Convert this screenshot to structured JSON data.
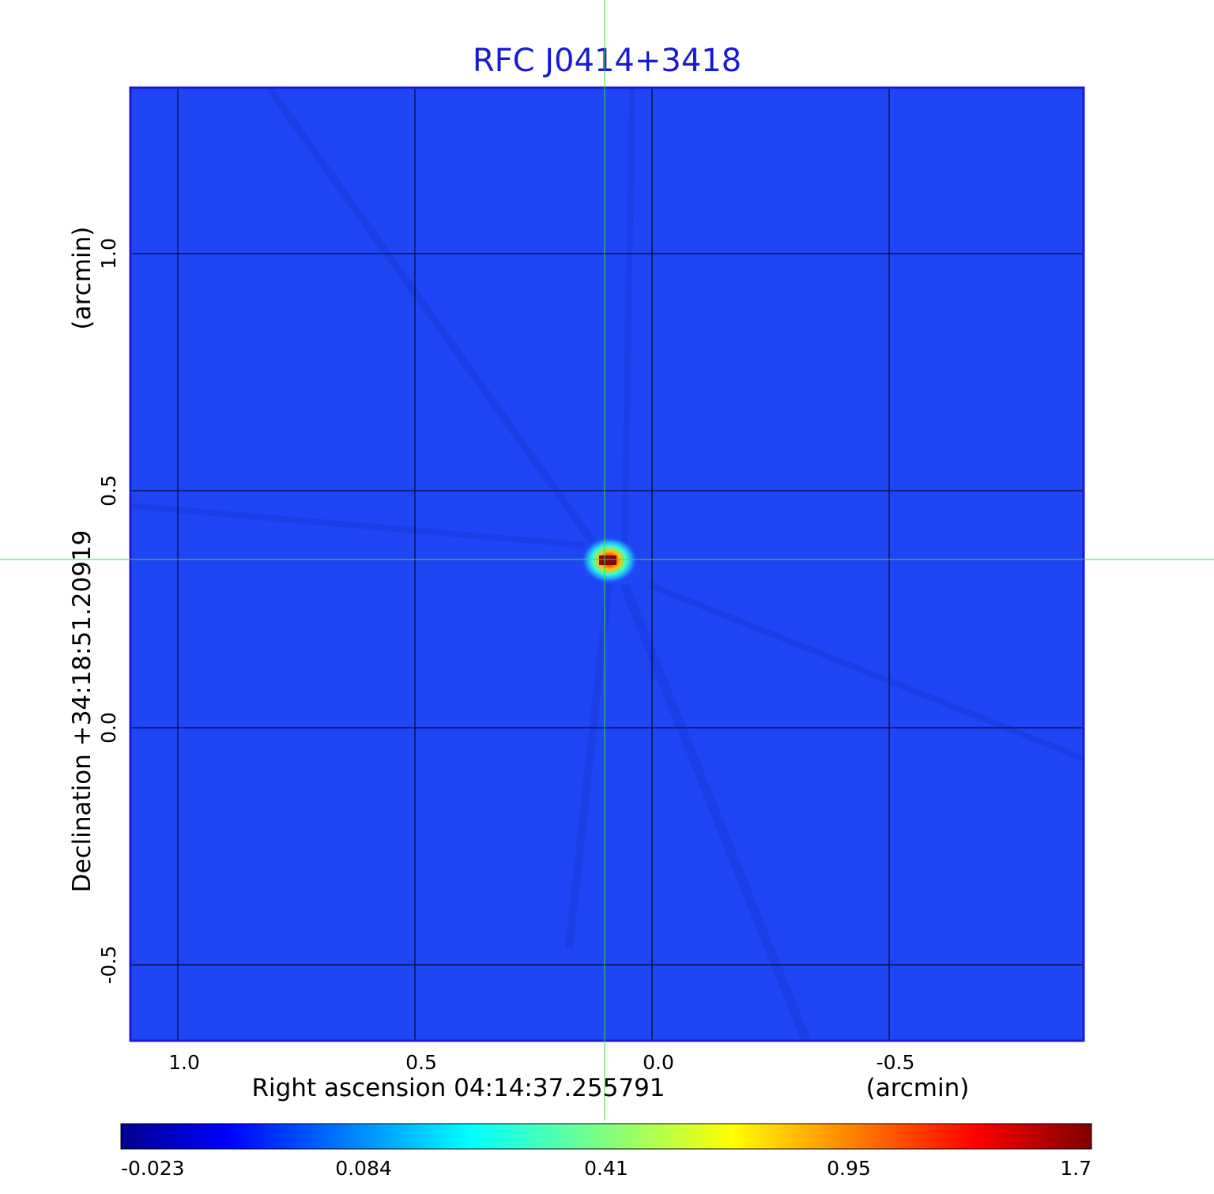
{
  "chart_data": {
    "type": "heatmap",
    "title": "RFC J0414+3418",
    "xlabel": "Right ascension  04:14:37.255791",
    "xunit": "(arcmin)",
    "ylabel": "Declination  +34:18:51.20919",
    "yunit": "(arcmin)",
    "x_ticks": [
      {
        "value": 1.0,
        "label": "1.0"
      },
      {
        "value": 0.5,
        "label": "0.5"
      },
      {
        "value": 0.0,
        "label": "0.0"
      },
      {
        "value": -0.5,
        "label": "-0.5"
      }
    ],
    "y_ticks": [
      {
        "value": 1.0,
        "label": "1.0"
      },
      {
        "value": 0.5,
        "label": "0.5"
      },
      {
        "value": 0.0,
        "label": "0.0"
      },
      {
        "value": -0.5,
        "label": "-0.5"
      }
    ],
    "xlim": [
      1.1,
      -0.91
    ],
    "ylim": [
      -0.66,
      1.35
    ],
    "grid": true,
    "crosshair": {
      "x": 0.1,
      "y": 0.355
    },
    "source_peak": {
      "x": 0.09,
      "y": 0.355,
      "value": 1.7
    },
    "colorbar": {
      "labels": [
        "-0.023",
        "0.084",
        "0.41",
        "0.95",
        "1.7"
      ],
      "min": -0.023,
      "max": 1.7,
      "colormap": "jet"
    },
    "colors": {
      "title": "#1a1ad6",
      "background_field": "#1f45f5",
      "frame": "#1a1ad6",
      "crosshair": "#33e033",
      "grid": "#000000"
    }
  }
}
